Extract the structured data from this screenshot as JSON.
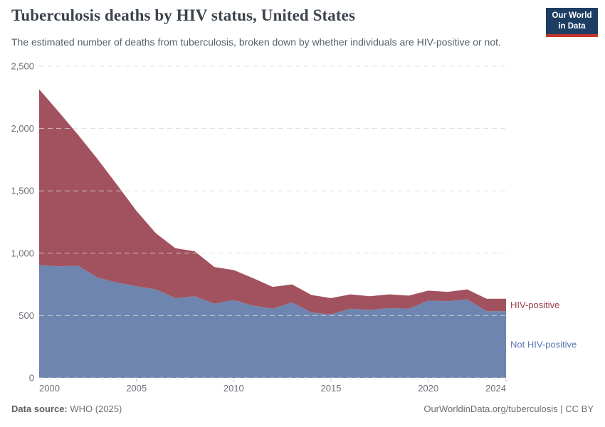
{
  "header": {
    "title": "Tuberculosis deaths by HIV status, United States",
    "subtitle": "The estimated number of deaths from tuberculosis, broken down by whether individuals are HIV-positive or not.",
    "logo": {
      "line1": "Our World",
      "line2": "in Data",
      "bg_color": "#1d3d63",
      "accent_color": "#c4352c"
    }
  },
  "chart_data": {
    "type": "area",
    "stacked": true,
    "title": "Tuberculosis deaths by HIV status, United States",
    "xlabel": "",
    "ylabel": "",
    "x": [
      2000,
      2001,
      2002,
      2003,
      2004,
      2005,
      2006,
      2007,
      2008,
      2009,
      2010,
      2011,
      2012,
      2013,
      2014,
      2015,
      2016,
      2017,
      2018,
      2019,
      2020,
      2021,
      2022,
      2023,
      2024
    ],
    "series": [
      {
        "name": "Not HIV-positive",
        "color": "#6e85af",
        "label_color": "#5c78b5",
        "values": [
          905,
          895,
          900,
          805,
          765,
          735,
          710,
          640,
          655,
          595,
          625,
          580,
          555,
          605,
          525,
          510,
          555,
          545,
          560,
          555,
          620,
          615,
          630,
          535,
          535
        ]
      },
      {
        "name": "HIV-positive",
        "color": "#a2525e",
        "label_color": "#9a3e4c",
        "values": [
          1410,
          1240,
          1050,
          950,
          785,
          605,
          450,
          400,
          360,
          295,
          240,
          220,
          175,
          145,
          140,
          130,
          115,
          110,
          110,
          105,
          80,
          75,
          80,
          100,
          100
        ]
      }
    ],
    "xlim": [
      2000,
      2024
    ],
    "ylim": [
      0,
      2500
    ],
    "yticks": [
      {
        "value": 0,
        "label": "0"
      },
      {
        "value": 500,
        "label": "500"
      },
      {
        "value": 1000,
        "label": "1,000"
      },
      {
        "value": 1500,
        "label": "1,500"
      },
      {
        "value": 2000,
        "label": "2,000"
      },
      {
        "value": 2500,
        "label": "2,500"
      }
    ],
    "xticks": [
      {
        "value": 2000,
        "label": "2000"
      },
      {
        "value": 2005,
        "label": "2005"
      },
      {
        "value": 2010,
        "label": "2010"
      },
      {
        "value": 2015,
        "label": "2015"
      },
      {
        "value": 2020,
        "label": "2020"
      },
      {
        "value": 2024,
        "label": "2024"
      }
    ],
    "grid": "horizontal-dashed",
    "legend_position": "right-of-plot"
  },
  "footer": {
    "source_label": "Data source:",
    "source_value": " WHO (2025)",
    "right_text": "OurWorldinData.org/tuberculosis | CC BY"
  }
}
